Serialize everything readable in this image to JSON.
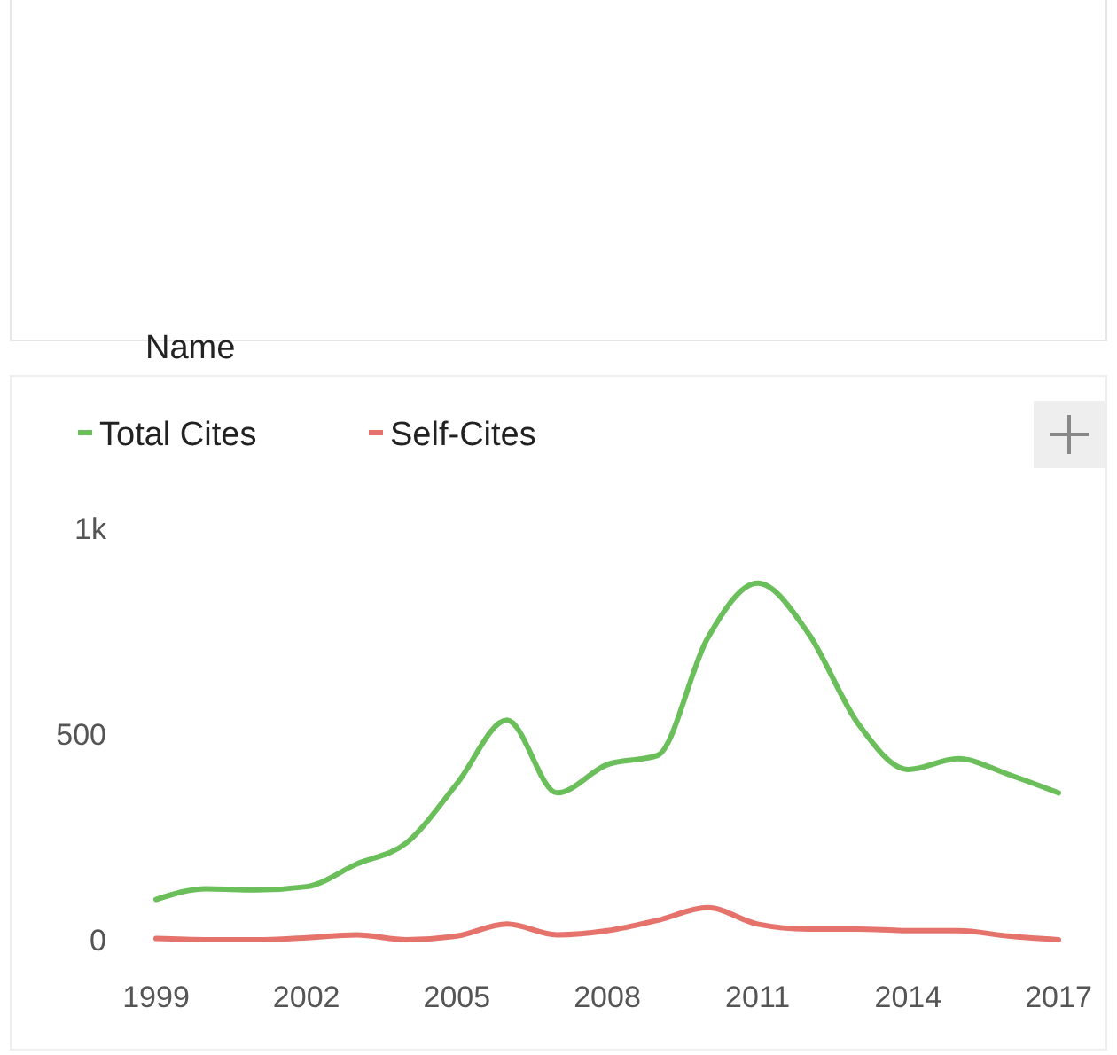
{
  "chart_data": {
    "type": "line",
    "annotations": [
      "Name"
    ],
    "x": [
      1999,
      2000,
      2001,
      2002,
      2003,
      2004,
      2005,
      2006,
      2007,
      2008,
      2009,
      2010,
      2011,
      2012,
      2013,
      2014,
      2015,
      2016,
      2017
    ],
    "series": [
      {
        "name": "Total Cites",
        "color": "#6abf5a",
        "values": [
          98,
          124,
          121,
          129,
          184,
          236,
          379,
          534,
          357,
          426,
          448,
          733,
          867,
          747,
          526,
          414,
          440,
          402,
          357
        ]
      },
      {
        "name": "Self-Cites",
        "color": "#e5736b",
        "values": [
          3,
          0,
          0,
          5,
          12,
          0,
          9,
          38,
          12,
          22,
          47,
          78,
          38,
          26,
          26,
          22,
          22,
          9,
          0
        ]
      }
    ],
    "xlim": [
      1999,
      2017
    ],
    "xticks": [
      1999,
      2002,
      2005,
      2008,
      2011,
      2014,
      2017
    ],
    "ylim": [
      0,
      1000
    ],
    "yticks": [
      0,
      500,
      {
        "value": 1000,
        "label": "1k"
      }
    ],
    "grid": false,
    "legend": "top left",
    "marker": "none",
    "line_style": "solid"
  }
}
